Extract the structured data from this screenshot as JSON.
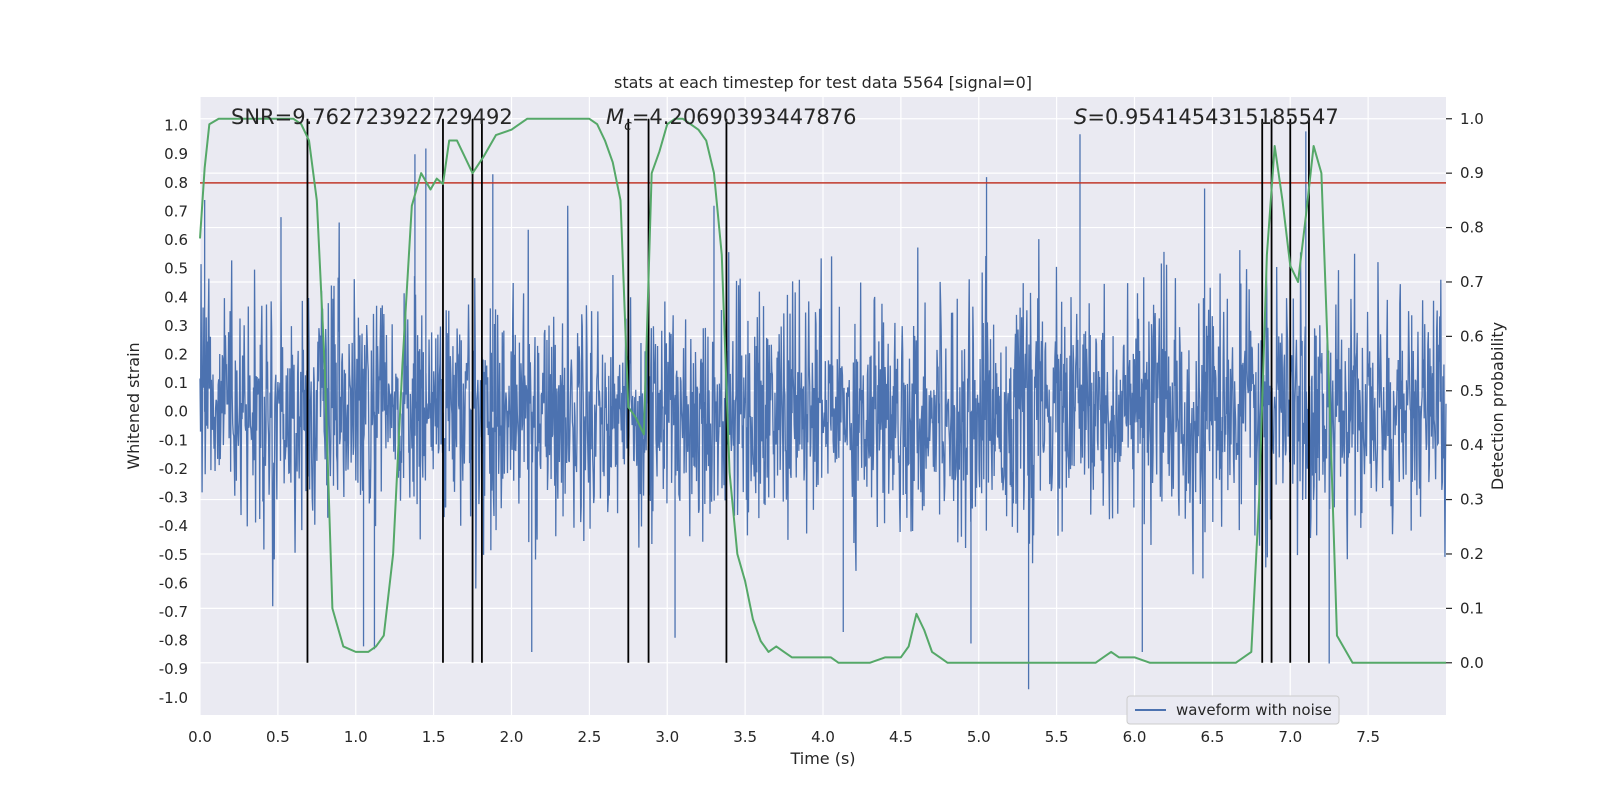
{
  "chart_data": {
    "type": "line",
    "title": "stats at each timestep for test data 5564 [signal=0]",
    "xlabel": "Time (s)",
    "ylabel_left": "Whitened strain",
    "ylabel_right": "Detection probability",
    "xlim": [
      0.0,
      8.0
    ],
    "ylim_left": [
      -1.06,
      1.1
    ],
    "ylim_right": [
      -0.096,
      1.04
    ],
    "x_ticks": [
      "0.0",
      "0.5",
      "1.0",
      "1.5",
      "2.0",
      "2.5",
      "3.0",
      "3.5",
      "4.0",
      "4.5",
      "5.0",
      "5.5",
      "6.0",
      "6.5",
      "7.0",
      "7.5"
    ],
    "y_ticks_left": [
      "1.0",
      "0.9",
      "0.8",
      "0.7",
      "0.6",
      "0.5",
      "0.4",
      "0.3",
      "0.2",
      "0.1",
      "0.0",
      "-0.1",
      "-0.2",
      "-0.3",
      "-0.4",
      "-0.5",
      "-0.6",
      "-0.7",
      "-0.8",
      "-0.9",
      "-1.0"
    ],
    "y_ticks_right": [
      "1.0",
      "0.9",
      "0.8",
      "0.7",
      "0.6",
      "0.5",
      "0.4",
      "0.3",
      "0.2",
      "0.1",
      "0.0"
    ],
    "grid": true,
    "legend_placement": "lower-right",
    "annotations": {
      "snr": "SNR=9.762723922729492",
      "mc_symbol": "M",
      "mc_sub": "c",
      "mc_value": "=4.20690393447876",
      "s_symbol": "S",
      "s_value": "=0.9541454315185547"
    },
    "threshold": {
      "value": 0.8,
      "axis": "left",
      "color": "#c0392b"
    },
    "series": [
      {
        "name": "waveform with noise",
        "color": "#4c72b0",
        "axis": "left",
        "description_peaks": {
          "upper_envelope_approx": 0.55,
          "lower_envelope_approx": -0.55,
          "notable_spikes": [
            [
              0.03,
              0.74
            ],
            [
              0.52,
              0.68
            ],
            [
              1.38,
              0.9
            ],
            [
              1.45,
              0.92
            ],
            [
              1.88,
              0.83
            ],
            [
              3.3,
              0.72
            ],
            [
              5.05,
              0.82
            ],
            [
              5.65,
              0.97
            ],
            [
              6.45,
              0.78
            ],
            [
              7.0,
              0.98
            ],
            [
              7.1,
              0.98
            ],
            [
              1.05,
              -0.82
            ],
            [
              1.12,
              -0.83
            ],
            [
              2.13,
              -0.84
            ],
            [
              3.05,
              -0.79
            ],
            [
              4.13,
              -0.77
            ],
            [
              4.95,
              -0.81
            ],
            [
              5.32,
              -0.97
            ],
            [
              6.05,
              -0.84
            ],
            [
              7.25,
              -0.88
            ]
          ]
        }
      },
      {
        "name": "detection-probability",
        "color": "#55a868",
        "axis": "right",
        "x": [
          0.0,
          0.03,
          0.06,
          0.12,
          0.2,
          0.3,
          0.4,
          0.5,
          0.6,
          0.65,
          0.7,
          0.75,
          0.8,
          0.85,
          0.92,
          1.0,
          1.08,
          1.13,
          1.18,
          1.24,
          1.3,
          1.36,
          1.42,
          1.48,
          1.52,
          1.56,
          1.6,
          1.65,
          1.7,
          1.75,
          1.82,
          1.86,
          1.9,
          2.0,
          2.1,
          2.2,
          2.3,
          2.4,
          2.45,
          2.5,
          2.55,
          2.6,
          2.65,
          2.7,
          2.75,
          2.8,
          2.85,
          2.9,
          2.95,
          3.0,
          3.05,
          3.1,
          3.15,
          3.2,
          3.25,
          3.3,
          3.35,
          3.4,
          3.45,
          3.5,
          3.55,
          3.6,
          3.65,
          3.7,
          3.75,
          3.8,
          3.85,
          3.9,
          3.95,
          4.0,
          4.05,
          4.1,
          4.2,
          4.3,
          4.4,
          4.5,
          4.55,
          4.6,
          4.65,
          4.7,
          4.75,
          4.8,
          4.85,
          4.9,
          5.0,
          5.2,
          5.4,
          5.5,
          5.6,
          5.7,
          5.75,
          5.8,
          5.85,
          5.9,
          5.95,
          6.0,
          6.1,
          6.2,
          6.3,
          6.5,
          6.65,
          6.75,
          6.8,
          6.85,
          6.9,
          6.95,
          7.0,
          7.05,
          7.1,
          7.15,
          7.2,
          7.25,
          7.3,
          7.4,
          7.6,
          7.8,
          8.0
        ],
        "y": [
          0.78,
          0.91,
          0.99,
          1.0,
          1.0,
          1.0,
          1.0,
          1.0,
          1.0,
          0.99,
          0.96,
          0.85,
          0.55,
          0.1,
          0.03,
          0.02,
          0.02,
          0.03,
          0.05,
          0.2,
          0.55,
          0.84,
          0.9,
          0.87,
          0.89,
          0.88,
          0.96,
          0.96,
          0.93,
          0.9,
          0.93,
          0.95,
          0.97,
          0.98,
          1.0,
          1.0,
          1.0,
          1.0,
          1.0,
          1.0,
          0.99,
          0.96,
          0.92,
          0.85,
          0.47,
          0.45,
          0.42,
          0.9,
          0.94,
          0.99,
          1.0,
          1.0,
          0.99,
          0.98,
          0.96,
          0.9,
          0.75,
          0.35,
          0.2,
          0.15,
          0.08,
          0.04,
          0.02,
          0.03,
          0.02,
          0.01,
          0.01,
          0.01,
          0.01,
          0.01,
          0.01,
          0.0,
          0.0,
          0.0,
          0.01,
          0.01,
          0.03,
          0.09,
          0.06,
          0.02,
          0.01,
          0.0,
          0.0,
          0.0,
          0.0,
          0.0,
          0.0,
          0.0,
          0.0,
          0.0,
          0.0,
          0.01,
          0.02,
          0.01,
          0.01,
          0.01,
          0.0,
          0.0,
          0.0,
          0.0,
          0.0,
          0.02,
          0.3,
          0.75,
          0.95,
          0.85,
          0.73,
          0.7,
          0.82,
          0.95,
          0.9,
          0.5,
          0.05,
          0.0,
          0.0,
          0.0,
          0.0
        ]
      }
    ],
    "vertical_markers_x": [
      0.69,
      1.56,
      1.75,
      1.81,
      2.75,
      2.88,
      3.38,
      6.82,
      6.88,
      7.0,
      7.12
    ]
  }
}
